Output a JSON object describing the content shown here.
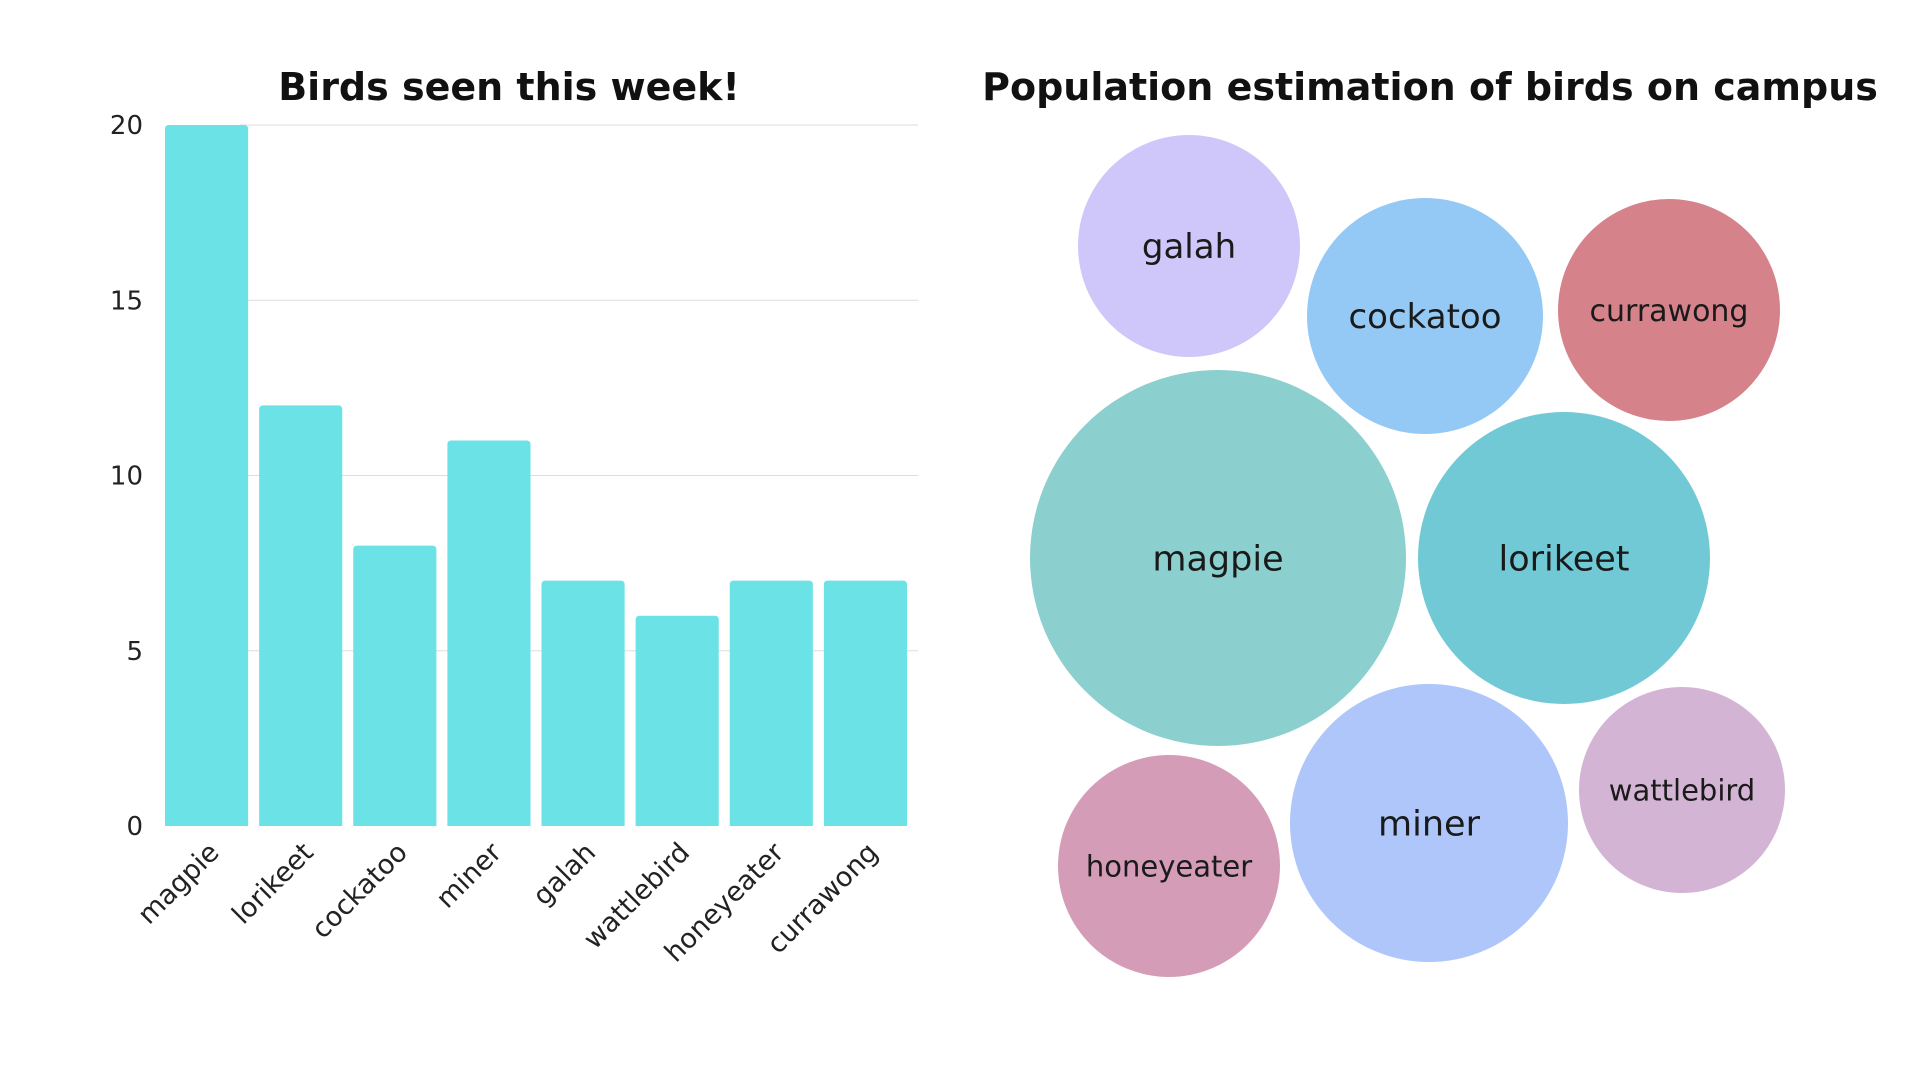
{
  "chart_data": [
    {
      "type": "bar",
      "title": "Birds seen this week!",
      "xlabel": "",
      "ylabel": "",
      "categories": [
        "magpie",
        "lorikeet",
        "cockatoo",
        "miner",
        "galah",
        "wattlebird",
        "honeyeater",
        "currawong"
      ],
      "values": [
        20,
        12,
        8,
        11,
        7,
        6,
        7,
        7
      ],
      "ylim": [
        0,
        20
      ],
      "yticks": [
        0,
        5,
        10,
        15,
        20
      ],
      "grid": true,
      "bar_color": "#6be3e6",
      "gridline_color": "#dddddd"
    },
    {
      "type": "bubble",
      "title": "Population estimation of birds on campus",
      "bubbles": [
        {
          "label": "galah",
          "color": "#cfc7fa"
        },
        {
          "label": "cockatoo",
          "color": "#95c9f5"
        },
        {
          "label": "currawong",
          "color": "#d5828b"
        },
        {
          "label": "magpie",
          "color": "#8bd0ce"
        },
        {
          "label": "lorikeet",
          "color": "#71c9d6"
        },
        {
          "label": "honeyeater",
          "color": "#d49cb7"
        },
        {
          "label": "miner",
          "color": "#aec6fa"
        },
        {
          "label": "wattlebird",
          "color": "#d3b4d4"
        }
      ]
    }
  ]
}
